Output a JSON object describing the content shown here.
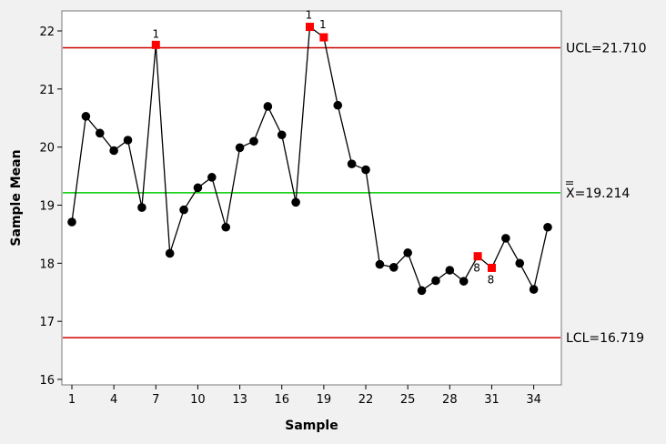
{
  "chart_data": {
    "type": "line",
    "title": "",
    "xlabel": "Sample",
    "ylabel": "Sample Mean",
    "xlim": [
      1,
      35
    ],
    "ylim": [
      16,
      22.3
    ],
    "x_ticks": [
      1,
      4,
      7,
      10,
      13,
      16,
      19,
      22,
      25,
      28,
      31,
      34
    ],
    "y_ticks": [
      16,
      17,
      18,
      19,
      20,
      21,
      22
    ],
    "grid": false,
    "colors": {
      "series": "#000000",
      "flagged": "#ff0000",
      "limits": "#cc0000",
      "center": "#00cc00"
    },
    "x": [
      1,
      2,
      3,
      4,
      5,
      6,
      7,
      8,
      9,
      10,
      11,
      12,
      13,
      14,
      15,
      16,
      17,
      18,
      19,
      20,
      21,
      22,
      23,
      24,
      25,
      26,
      27,
      28,
      29,
      30,
      31,
      32,
      33,
      34,
      35
    ],
    "values": [
      18.71,
      20.53,
      20.24,
      19.94,
      20.12,
      18.96,
      21.76,
      18.17,
      18.92,
      19.3,
      19.48,
      18.62,
      19.99,
      20.1,
      20.7,
      20.21,
      19.05,
      22.07,
      21.89,
      20.72,
      19.71,
      19.61,
      17.98,
      17.93,
      18.18,
      17.53,
      17.7,
      17.88,
      17.69,
      18.12,
      17.92,
      18.43,
      18.0,
      17.55,
      18.62
    ],
    "flagged_points": [
      {
        "x": 7,
        "label": "1"
      },
      {
        "x": 18,
        "label": "1"
      },
      {
        "x": 19,
        "label": "1"
      },
      {
        "x": 30,
        "label": "8"
      },
      {
        "x": 31,
        "label": "8"
      }
    ],
    "control_limits": [
      {
        "name": "UCL",
        "value": 21.71,
        "label": "UCL=21.710"
      },
      {
        "name": "CL",
        "value": 19.214,
        "label": "X=19.214"
      },
      {
        "name": "LCL",
        "value": 16.719,
        "label": "LCL=16.719"
      }
    ]
  }
}
